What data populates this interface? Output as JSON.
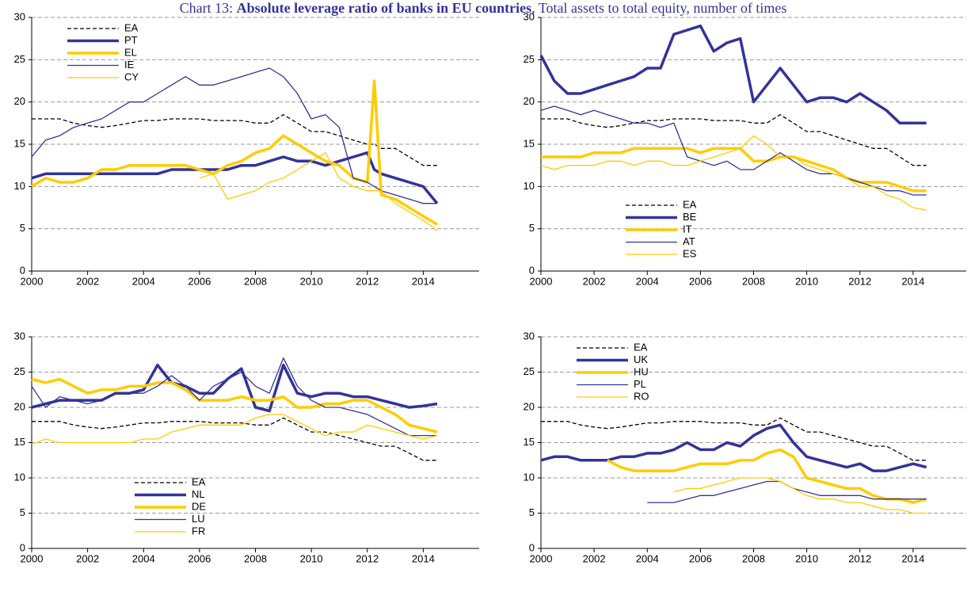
{
  "title_prefix": "Chart 13:",
  "title": "Absolute leverage ratio of banks in EU countries",
  "subtitle": ", Total assets to total equity, number of times",
  "chart_data": [
    {
      "type": "line",
      "legend": "upper left",
      "xlim": [
        2000,
        2016
      ],
      "ylim": [
        0,
        30
      ],
      "xticks": [
        2000,
        2002,
        2004,
        2006,
        2008,
        2010,
        2012,
        2014
      ],
      "yticks": [
        0,
        5,
        10,
        15,
        20,
        25,
        30
      ],
      "grid": true,
      "x": [
        2000,
        2000.5,
        2001,
        2001.5,
        2002,
        2002.5,
        2003,
        2003.5,
        2004,
        2004.5,
        2005,
        2005.5,
        2006,
        2006.5,
        2007,
        2007.5,
        2008,
        2008.5,
        2009,
        2009.5,
        2010,
        2010.5,
        2011,
        2011.5,
        2012,
        2012.25,
        2012.5,
        2013,
        2013.5,
        2014,
        2014.5
      ],
      "series": [
        {
          "name": "EA",
          "color": "#000000",
          "width": 1.3,
          "dashed": true,
          "values": [
            18,
            18,
            18,
            17.5,
            17.2,
            17,
            17.2,
            17.5,
            17.8,
            17.8,
            18,
            18,
            18,
            17.8,
            17.8,
            17.8,
            17.5,
            17.5,
            18.5,
            17.5,
            16.5,
            16.5,
            16,
            15.5,
            15,
            15,
            14.5,
            14.5,
            13.5,
            12.5,
            12.5
          ]
        },
        {
          "name": "PT",
          "color": "#333399",
          "width": 3.5,
          "values": [
            11,
            11.5,
            11.5,
            11.5,
            11.5,
            11.5,
            11.5,
            11.5,
            11.5,
            11.5,
            12,
            12,
            12,
            12,
            12,
            12.5,
            12.5,
            13,
            13.5,
            13,
            13,
            12.5,
            13,
            13.5,
            14,
            12,
            11.5,
            11,
            10.5,
            10,
            8
          ]
        },
        {
          "name": "EL",
          "color": "#ffcc00",
          "width": 3.5,
          "values": [
            10,
            11,
            10.5,
            10.5,
            11,
            12,
            12,
            12.5,
            12.5,
            12.5,
            12.5,
            12.5,
            12,
            11.5,
            12.5,
            13,
            14,
            14.5,
            16,
            15,
            14,
            13,
            12.5,
            11,
            10.5,
            22.5,
            9,
            8.5,
            7.5,
            6.5,
            5.5
          ]
        },
        {
          "name": "IE",
          "color": "#333399",
          "width": 1.3,
          "values": [
            13.5,
            15.5,
            16,
            17,
            17.5,
            18,
            19,
            20,
            20,
            21,
            22,
            23,
            22,
            22,
            22.5,
            23,
            23.5,
            24,
            23,
            21,
            18,
            18.5,
            17,
            11,
            10.5,
            10,
            9.5,
            9,
            8.5,
            8,
            8
          ]
        },
        {
          "name": "CY",
          "color": "#ffcc00",
          "width": 1.3,
          "values": [
            null,
            null,
            null,
            null,
            null,
            null,
            null,
            null,
            null,
            null,
            null,
            null,
            11,
            11.5,
            8.5,
            9,
            9.5,
            10.5,
            11,
            12,
            13,
            14,
            11,
            10,
            9.5,
            9.5,
            9.5,
            8,
            7,
            6,
            4.8
          ]
        }
      ]
    },
    {
      "type": "line",
      "legend": "lower center",
      "xlim": [
        2000,
        2016
      ],
      "ylim": [
        0,
        30
      ],
      "xticks": [
        2000,
        2002,
        2004,
        2006,
        2008,
        2010,
        2012,
        2014
      ],
      "yticks": [
        0,
        5,
        10,
        15,
        20,
        25,
        30
      ],
      "grid": true,
      "x": [
        2000,
        2000.5,
        2001,
        2001.5,
        2002,
        2002.5,
        2003,
        2003.5,
        2004,
        2004.5,
        2005,
        2005.5,
        2006,
        2006.5,
        2007,
        2007.5,
        2008,
        2008.5,
        2009,
        2009.5,
        2010,
        2010.5,
        2011,
        2011.5,
        2012,
        2012.5,
        2013,
        2013.5,
        2014,
        2014.5
      ],
      "series": [
        {
          "name": "EA",
          "color": "#000000",
          "width": 1.3,
          "dashed": true,
          "values": [
            18,
            18,
            18,
            17.5,
            17.2,
            17,
            17.2,
            17.5,
            17.8,
            17.8,
            18,
            18,
            18,
            17.8,
            17.8,
            17.8,
            17.5,
            17.5,
            18.5,
            17.5,
            16.5,
            16.5,
            16,
            15.5,
            15,
            14.5,
            14.5,
            13.5,
            12.5,
            12.5
          ]
        },
        {
          "name": "BE",
          "color": "#333399",
          "width": 3.5,
          "values": [
            25.5,
            22.5,
            21,
            21,
            21.5,
            22,
            22.5,
            23,
            24,
            24,
            28,
            28.5,
            29,
            26,
            27,
            27.5,
            20,
            22,
            24,
            22,
            20,
            20.5,
            20.5,
            20,
            21,
            20,
            19,
            17.5,
            17.5,
            17.5
          ]
        },
        {
          "name": "IT",
          "color": "#ffcc00",
          "width": 3.5,
          "values": [
            13.5,
            13.5,
            13.5,
            13.5,
            14,
            14,
            14,
            14.5,
            14.5,
            14.5,
            14.5,
            14.5,
            14,
            14.5,
            14.5,
            14.5,
            13,
            13,
            13.5,
            13.5,
            13,
            12.5,
            12,
            11,
            10.5,
            10.5,
            10.5,
            10,
            9.5,
            9.5
          ]
        },
        {
          "name": "AT",
          "color": "#333399",
          "width": 1.3,
          "values": [
            19,
            19.5,
            19,
            18.5,
            19,
            18.5,
            18,
            17.5,
            17.5,
            17,
            17.5,
            13.5,
            13,
            12.5,
            13,
            12,
            12,
            13,
            14,
            13,
            12,
            11.5,
            11.5,
            11,
            10.5,
            10,
            9.5,
            9.5,
            9,
            9
          ]
        },
        {
          "name": "ES",
          "color": "#ffcc00",
          "width": 1.3,
          "values": [
            12.5,
            12,
            12.5,
            12.5,
            12.5,
            13,
            13,
            12.5,
            13,
            13,
            12.5,
            12.5,
            13,
            13.5,
            14,
            14.5,
            16,
            15,
            13.5,
            13.5,
            12.5,
            12,
            11.5,
            11,
            10,
            10,
            9,
            8.5,
            7.5,
            7.2
          ]
        }
      ]
    },
    {
      "type": "line",
      "legend": "lower left",
      "xlim": [
        2000,
        2016
      ],
      "ylim": [
        0,
        30
      ],
      "xticks": [
        2000,
        2002,
        2004,
        2006,
        2008,
        2010,
        2012,
        2014
      ],
      "yticks": [
        0,
        5,
        10,
        15,
        20,
        25,
        30
      ],
      "grid": true,
      "x": [
        2000,
        2000.5,
        2001,
        2001.5,
        2002,
        2002.5,
        2003,
        2003.5,
        2004,
        2004.5,
        2005,
        2005.5,
        2006,
        2006.5,
        2007,
        2007.5,
        2008,
        2008.5,
        2009,
        2009.5,
        2010,
        2010.5,
        2011,
        2011.5,
        2012,
        2012.5,
        2013,
        2013.5,
        2014,
        2014.5
      ],
      "series": [
        {
          "name": "EA",
          "color": "#000000",
          "width": 1.3,
          "dashed": true,
          "values": [
            18,
            18,
            18,
            17.5,
            17.2,
            17,
            17.2,
            17.5,
            17.8,
            17.8,
            18,
            18,
            18,
            17.8,
            17.8,
            17.8,
            17.5,
            17.5,
            18.5,
            17.5,
            16.5,
            16.5,
            16,
            15.5,
            15,
            14.5,
            14.5,
            13.5,
            12.5,
            12.5
          ]
        },
        {
          "name": "NL",
          "color": "#333399",
          "width": 3.5,
          "values": [
            20,
            20.5,
            21,
            21,
            21,
            21,
            22,
            22,
            22.5,
            26,
            23.5,
            23,
            22,
            22,
            24,
            25.5,
            20,
            19.5,
            26,
            22,
            21.5,
            22,
            22,
            21.5,
            21.5,
            21,
            20.5,
            20,
            20.2,
            20.5
          ]
        },
        {
          "name": "DE",
          "color": "#ffcc00",
          "width": 3.5,
          "values": [
            24,
            23.5,
            24,
            23,
            22,
            22.5,
            22.5,
            23,
            23,
            23.5,
            23.5,
            22.5,
            21,
            21,
            21,
            21.5,
            21,
            21,
            21.5,
            20,
            20,
            20.5,
            20.5,
            21,
            21,
            20,
            19,
            17.5,
            17,
            16.5
          ]
        },
        {
          "name": "LU",
          "color": "#333399",
          "width": 1.3,
          "values": [
            23,
            20,
            21.5,
            21,
            20.5,
            21,
            22,
            22,
            22,
            23,
            24.5,
            23,
            21,
            23,
            24,
            25,
            23,
            22,
            27,
            23,
            21,
            20,
            20,
            19.5,
            19,
            18,
            17,
            16,
            16,
            16
          ]
        },
        {
          "name": "FR",
          "color": "#ffcc00",
          "width": 1.3,
          "values": [
            14.8,
            15.5,
            15,
            15,
            15,
            15,
            15,
            15,
            15.5,
            15.5,
            16.5,
            17,
            17.5,
            17.5,
            17.5,
            17.5,
            18.5,
            19,
            19,
            18,
            17,
            16,
            16.5,
            16.5,
            17.5,
            17,
            16.5,
            16,
            15.5,
            16
          ]
        }
      ]
    },
    {
      "type": "line",
      "legend": "upper left",
      "xlim": [
        2000,
        2016
      ],
      "ylim": [
        0,
        30
      ],
      "xticks": [
        2000,
        2002,
        2004,
        2006,
        2008,
        2010,
        2012,
        2014
      ],
      "yticks": [
        0,
        5,
        10,
        15,
        20,
        25,
        30
      ],
      "grid": true,
      "x": [
        2000,
        2000.5,
        2001,
        2001.5,
        2002,
        2002.5,
        2003,
        2003.5,
        2004,
        2004.5,
        2005,
        2005.5,
        2006,
        2006.5,
        2007,
        2007.5,
        2008,
        2008.5,
        2009,
        2009.5,
        2010,
        2010.5,
        2011,
        2011.5,
        2012,
        2012.5,
        2013,
        2013.5,
        2014,
        2014.5
      ],
      "series": [
        {
          "name": "EA",
          "color": "#000000",
          "width": 1.3,
          "dashed": true,
          "values": [
            18,
            18,
            18,
            17.5,
            17.2,
            17,
            17.2,
            17.5,
            17.8,
            17.8,
            18,
            18,
            18,
            17.8,
            17.8,
            17.8,
            17.5,
            17.5,
            18.5,
            17.5,
            16.5,
            16.5,
            16,
            15.5,
            15,
            14.5,
            14.5,
            13.5,
            12.5,
            12.5
          ]
        },
        {
          "name": "UK",
          "color": "#333399",
          "width": 3.5,
          "values": [
            12.5,
            13,
            13,
            12.5,
            12.5,
            12.5,
            13,
            13,
            13.5,
            13.5,
            14,
            15,
            14,
            14,
            15,
            14.5,
            16,
            17,
            17.5,
            15,
            13,
            12.5,
            12,
            11.5,
            12,
            11,
            11,
            11.5,
            12,
            11.5
          ]
        },
        {
          "name": "HU",
          "color": "#ffcc00",
          "width": 3.5,
          "values": [
            null,
            null,
            null,
            null,
            null,
            12.5,
            11.5,
            11,
            11,
            11,
            11,
            11.5,
            12,
            12,
            12,
            12.5,
            12.5,
            13.5,
            14,
            13,
            10,
            9.5,
            9,
            8.5,
            8.5,
            7.5,
            7,
            7,
            6.5,
            7
          ]
        },
        {
          "name": "PL",
          "color": "#333399",
          "width": 1.3,
          "values": [
            null,
            null,
            null,
            null,
            null,
            null,
            null,
            null,
            6.5,
            6.5,
            6.5,
            7,
            7.5,
            7.5,
            8,
            8.5,
            9,
            9.5,
            9.5,
            8.5,
            8,
            7.5,
            7.5,
            7.5,
            7.5,
            7,
            7,
            7,
            7,
            7
          ]
        },
        {
          "name": "RO",
          "color": "#ffcc00",
          "width": 1.3,
          "values": [
            null,
            null,
            null,
            null,
            null,
            null,
            null,
            null,
            null,
            null,
            8,
            8.5,
            8.5,
            9,
            9.5,
            10,
            10,
            10,
            9.5,
            8.5,
            7.5,
            7,
            7,
            6.5,
            6.5,
            6,
            5.5,
            5.5,
            5,
            5
          ]
        }
      ]
    }
  ]
}
